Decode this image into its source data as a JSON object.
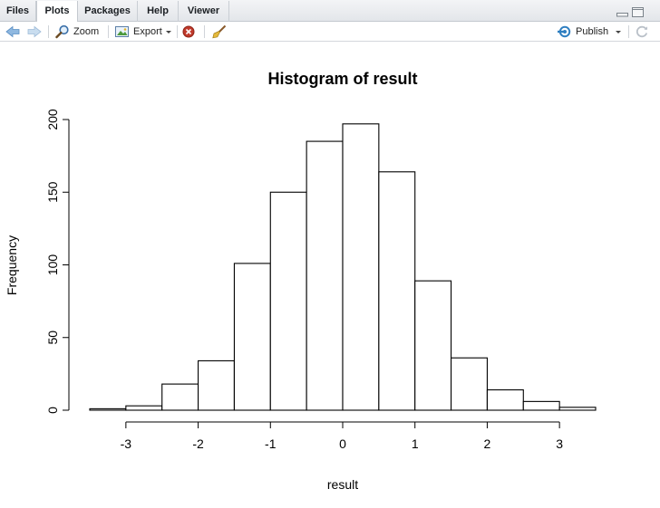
{
  "tabs": [
    {
      "label": "Files",
      "active": false
    },
    {
      "label": "Plots",
      "active": true
    },
    {
      "label": "Packages",
      "active": false
    },
    {
      "label": "Help",
      "active": false
    },
    {
      "label": "Viewer",
      "active": false
    }
  ],
  "toolbar": {
    "zoom_label": "Zoom",
    "export_label": "Export",
    "publish_label": "Publish"
  },
  "icons": {
    "back": "arrow-left-icon",
    "forward": "arrow-right-icon",
    "zoom": "magnifier-icon",
    "export": "image-export-icon",
    "remove": "remove-plot-icon",
    "clear": "broom-icon",
    "publish": "publish-icon",
    "refresh": "refresh-icon",
    "minimize": "minimize-pane-icon",
    "maximize": "maximize-pane-icon"
  },
  "colors": {
    "accent": "#2f7fc1",
    "remove": "#c0392b",
    "bar_fill": "#ffffff",
    "bar_stroke": "#000000"
  },
  "chart_data": {
    "type": "bar",
    "title": "Histogram of result",
    "xlabel": "result",
    "ylabel": "Frequency",
    "bin_edges": [
      -3.5,
      -3.0,
      -2.5,
      -2.0,
      -1.5,
      -1.0,
      -0.5,
      0.0,
      0.5,
      1.0,
      1.5,
      2.0,
      2.5,
      3.0,
      3.5
    ],
    "values": [
      1,
      3,
      18,
      34,
      101,
      150,
      185,
      197,
      164,
      89,
      36,
      14,
      6,
      2
    ],
    "x_ticks": [
      -3,
      -2,
      -1,
      0,
      1,
      2,
      3
    ],
    "y_ticks": [
      0,
      50,
      100,
      150,
      200
    ],
    "xlim": [
      -3.5,
      3.5
    ],
    "ylim": [
      0,
      200
    ],
    "grid": false,
    "legend": "none"
  }
}
